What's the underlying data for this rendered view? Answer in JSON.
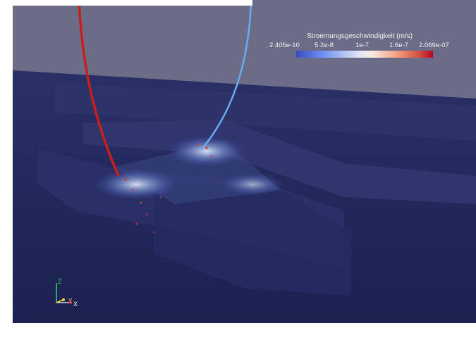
{
  "colorbar": {
    "title": "Stroemungsgeschwindigkeit (m/s)",
    "ticks": [
      "2.405e-10",
      "5.2e-8",
      "1e-7",
      "1.6e-7",
      "2.069e-07"
    ],
    "colors": [
      "#3a4cc0",
      "#6f92f3",
      "#dde3f3",
      "#f4987a",
      "#b40426"
    ]
  },
  "axes": {
    "z": "Z",
    "y": "Y",
    "x": "X"
  },
  "colors": {
    "background": "#6b6d88",
    "surface": "#222a5c",
    "streamline_red": "#c81e1e",
    "streamline_blue": "#6aaaf0"
  }
}
